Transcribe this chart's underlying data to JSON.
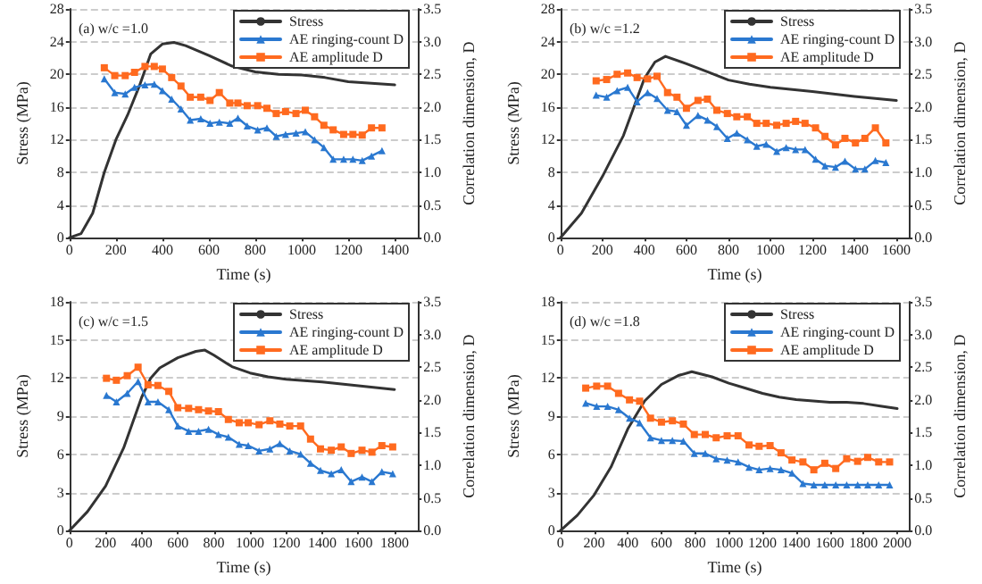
{
  "chart_data": [
    {
      "type": "line",
      "annotations": [
        "(a) w/c =1.0"
      ],
      "xlabel": "Time (s)",
      "ylabel": "Stress (MPa)",
      "y2label": "Correlation dimension, D",
      "xlim": [
        0,
        1500
      ],
      "xticks": [
        0,
        200,
        400,
        600,
        800,
        1000,
        1200,
        1400
      ],
      "ylim": [
        0,
        28
      ],
      "yticks": [
        0,
        4,
        8,
        12,
        16,
        20,
        24,
        28
      ],
      "y2lim": [
        0,
        3.5
      ],
      "y2ticks": [
        {
          "value": 0,
          "label": "0.0"
        },
        0.5,
        {
          "value": 1,
          "label": "1.0"
        },
        1.5,
        {
          "value": 2,
          "label": "2.0"
        },
        2.5,
        {
          "value": 3,
          "label": "3.0"
        },
        3.5
      ],
      "grid": "y",
      "legend": "top right",
      "series": [
        {
          "name": "Stress",
          "color": "#333333",
          "marker": "none",
          "x": [
            0,
            50,
            100,
            150,
            200,
            250,
            300,
            350,
            400,
            450,
            500,
            600,
            700,
            800,
            900,
            1000,
            1100,
            1200,
            1300,
            1400
          ],
          "values": [
            0,
            0.5,
            3,
            8,
            12,
            15,
            18.5,
            22.5,
            23.7,
            23.9,
            23.5,
            22.3,
            21,
            20.3,
            20,
            19.9,
            19.6,
            19.1,
            18.9,
            18.7
          ]
        },
        {
          "name": "AE ringing-count D",
          "color": "#2a78d0",
          "marker": "triangle",
          "axis": "y2",
          "x": [
            150,
            195,
            240,
            280,
            325,
            365,
            400,
            440,
            480,
            520,
            565,
            605,
            645,
            690,
            725,
            765,
            810,
            850,
            890,
            930,
            975,
            1015,
            1055,
            1095,
            1135,
            1180,
            1220,
            1260,
            1300,
            1345
          ],
          "values": [
            2.43,
            2.22,
            2.2,
            2.3,
            2.34,
            2.35,
            2.25,
            2.12,
            1.97,
            1.8,
            1.82,
            1.75,
            1.77,
            1.75,
            1.83,
            1.71,
            1.65,
            1.68,
            1.55,
            1.58,
            1.6,
            1.62,
            1.5,
            1.38,
            1.2,
            1.2,
            1.2,
            1.18,
            1.25,
            1.33
          ]
        },
        {
          "name": "AE amplitude D",
          "color": "#ff6a1f",
          "marker": "square",
          "axis": "y2",
          "x": [
            150,
            195,
            240,
            280,
            325,
            365,
            400,
            440,
            480,
            520,
            565,
            605,
            645,
            690,
            725,
            765,
            810,
            850,
            890,
            930,
            975,
            1015,
            1055,
            1095,
            1135,
            1180,
            1220,
            1260,
            1300,
            1345
          ],
          "values": [
            2.6,
            2.48,
            2.48,
            2.53,
            2.62,
            2.62,
            2.58,
            2.45,
            2.32,
            2.15,
            2.15,
            2.1,
            2.22,
            2.06,
            2.06,
            2.02,
            2.02,
            1.98,
            1.9,
            1.93,
            1.9,
            1.95,
            1.85,
            1.72,
            1.65,
            1.58,
            1.58,
            1.57,
            1.68,
            1.68
          ]
        }
      ]
    },
    {
      "type": "line",
      "annotations": [
        "(b) w/c =1.2"
      ],
      "xlabel": "Time (s)",
      "ylabel": "Stress (MPa)",
      "y2label": "Correlation dimension, D",
      "xlim": [
        0,
        1660
      ],
      "xticks": [
        0,
        200,
        400,
        600,
        800,
        1000,
        1200,
        1400,
        1600
      ],
      "ylim": [
        0,
        28
      ],
      "yticks": [
        0,
        4,
        8,
        12,
        16,
        20,
        24,
        28
      ],
      "y2lim": [
        0,
        3.5
      ],
      "y2ticks": [
        {
          "value": 0,
          "label": "0.0"
        },
        0.5,
        {
          "value": 1,
          "label": "1.0"
        },
        1.5,
        {
          "value": 2,
          "label": "2.0"
        },
        2.5,
        {
          "value": 3,
          "label": "3.0"
        },
        3.5
      ],
      "grid": "y",
      "legend": "top right",
      "series": [
        {
          "name": "Stress",
          "color": "#333333",
          "marker": "none",
          "x": [
            0,
            100,
            200,
            300,
            350,
            400,
            450,
            500,
            600,
            700,
            800,
            900,
            1000,
            1200,
            1400,
            1600
          ],
          "values": [
            0,
            3,
            7.5,
            12.5,
            16,
            19.5,
            21.5,
            22.2,
            21.3,
            20.3,
            19.3,
            18.8,
            18.4,
            17.9,
            17.3,
            16.8
          ]
        },
        {
          "name": "AE ringing-count D",
          "color": "#2a78d0",
          "marker": "triangle",
          "axis": "y2",
          "x": [
            170,
            220,
            270,
            320,
            365,
            415,
            460,
            510,
            555,
            600,
            655,
            700,
            745,
            795,
            840,
            890,
            935,
            980,
            1030,
            1075,
            1120,
            1165,
            1215,
            1260,
            1310,
            1355,
            1405,
            1450,
            1500,
            1550
          ],
          "values": [
            2.18,
            2.15,
            2.25,
            2.3,
            2.08,
            2.22,
            2.13,
            1.95,
            1.93,
            1.72,
            1.87,
            1.8,
            1.7,
            1.52,
            1.6,
            1.5,
            1.4,
            1.43,
            1.32,
            1.38,
            1.35,
            1.35,
            1.2,
            1.1,
            1.08,
            1.17,
            1.05,
            1.05,
            1.18,
            1.15
          ]
        },
        {
          "name": "AE amplitude D",
          "color": "#ff6a1f",
          "marker": "square",
          "axis": "y2",
          "x": [
            170,
            220,
            270,
            320,
            365,
            415,
            460,
            510,
            555,
            600,
            655,
            700,
            745,
            795,
            840,
            890,
            935,
            980,
            1030,
            1075,
            1120,
            1165,
            1215,
            1260,
            1310,
            1355,
            1405,
            1450,
            1500,
            1550
          ],
          "values": [
            2.4,
            2.42,
            2.5,
            2.52,
            2.45,
            2.43,
            2.47,
            2.22,
            2.15,
            1.98,
            2.1,
            2.12,
            1.95,
            1.9,
            1.85,
            1.85,
            1.75,
            1.75,
            1.72,
            1.75,
            1.78,
            1.75,
            1.68,
            1.55,
            1.42,
            1.52,
            1.45,
            1.52,
            1.68,
            1.45
          ]
        }
      ]
    },
    {
      "type": "line",
      "annotations": [
        "(c) w/c =1.5"
      ],
      "xlabel": "Time (s)",
      "ylabel": "Stress (MPa)",
      "y2label": "Correlation dimension, D",
      "xlim": [
        0,
        1930
      ],
      "xticks": [
        0,
        200,
        400,
        600,
        800,
        1000,
        1200,
        1400,
        1600,
        1800
      ],
      "ylim": [
        0,
        18
      ],
      "yticks": [
        0,
        3,
        6,
        9,
        12,
        15,
        18
      ],
      "y2lim": [
        0,
        3.5
      ],
      "y2ticks": [
        {
          "value": 0,
          "label": "0.0"
        },
        0.5,
        {
          "value": 1,
          "label": "1.0"
        },
        1.5,
        {
          "value": 2,
          "label": "2.0"
        },
        2.5,
        {
          "value": 3,
          "label": "3.0"
        },
        3.5
      ],
      "grid": "y",
      "legend": "top right",
      "series": [
        {
          "name": "Stress",
          "color": "#333333",
          "marker": "none",
          "x": [
            0,
            100,
            200,
            300,
            400,
            450,
            500,
            600,
            700,
            750,
            800,
            900,
            1000,
            1100,
            1200,
            1400,
            1600,
            1800
          ],
          "values": [
            0,
            1.5,
            3.5,
            6.5,
            10.5,
            12,
            12.8,
            13.6,
            14.1,
            14.2,
            13.8,
            12.9,
            12.4,
            12.1,
            11.9,
            11.7,
            11.4,
            11.1
          ]
        },
        {
          "name": "AE ringing-count D",
          "color": "#2a78d0",
          "marker": "triangle",
          "axis": "y2",
          "x": [
            205,
            260,
            320,
            380,
            435,
            490,
            550,
            600,
            660,
            715,
            770,
            825,
            880,
            940,
            990,
            1050,
            1110,
            1165,
            1220,
            1280,
            1335,
            1390,
            1450,
            1505,
            1560,
            1620,
            1675,
            1730,
            1790
          ],
          "values": [
            2.07,
            1.97,
            2.1,
            2.28,
            1.97,
            1.97,
            1.85,
            1.6,
            1.52,
            1.52,
            1.55,
            1.47,
            1.43,
            1.32,
            1.3,
            1.22,
            1.25,
            1.33,
            1.22,
            1.17,
            1.03,
            0.92,
            0.87,
            0.93,
            0.75,
            0.82,
            0.75,
            0.9,
            0.87
          ]
        },
        {
          "name": "AE amplitude D",
          "color": "#ff6a1f",
          "marker": "square",
          "axis": "y2",
          "x": [
            205,
            260,
            320,
            380,
            435,
            490,
            550,
            600,
            660,
            715,
            770,
            825,
            880,
            940,
            990,
            1050,
            1110,
            1165,
            1220,
            1280,
            1335,
            1390,
            1450,
            1505,
            1560,
            1620,
            1675,
            1730,
            1790
          ],
          "values": [
            2.33,
            2.3,
            2.37,
            2.5,
            2.23,
            2.22,
            2.13,
            1.88,
            1.87,
            1.85,
            1.83,
            1.82,
            1.7,
            1.65,
            1.65,
            1.62,
            1.68,
            1.63,
            1.6,
            1.6,
            1.4,
            1.25,
            1.23,
            1.28,
            1.18,
            1.23,
            1.2,
            1.3,
            1.28
          ]
        }
      ]
    },
    {
      "type": "line",
      "annotations": [
        "(d) w/c =1.8"
      ],
      "xlabel": "Time (s)",
      "ylabel": "Stress (MPa)",
      "y2label": "Correlation dimension, D",
      "xlim": [
        0,
        2070
      ],
      "xticks": [
        0,
        200,
        400,
        600,
        800,
        1000,
        1200,
        1400,
        1600,
        1800,
        2000
      ],
      "ylim": [
        0,
        18
      ],
      "yticks": [
        0,
        3,
        6,
        9,
        12,
        15,
        18
      ],
      "y2lim": [
        0,
        3.5
      ],
      "y2ticks": [
        {
          "value": 0,
          "label": "0.0"
        },
        0.5,
        {
          "value": 1,
          "label": "1.0"
        },
        1.5,
        {
          "value": 2,
          "label": "2.0"
        },
        2.5,
        {
          "value": 3,
          "label": "3.0"
        },
        3.5
      ],
      "grid": "y",
      "legend": "top right",
      "series": [
        {
          "name": "Stress",
          "color": "#333333",
          "marker": "none",
          "x": [
            0,
            100,
            200,
            300,
            400,
            500,
            600,
            700,
            780,
            900,
            1000,
            1100,
            1200,
            1300,
            1400,
            1500,
            1600,
            1700,
            1800,
            1900,
            2000
          ],
          "values": [
            0,
            1.2,
            2.8,
            5,
            8,
            10.2,
            11.5,
            12.2,
            12.5,
            12.1,
            11.6,
            11.2,
            10.8,
            10.5,
            10.3,
            10.2,
            10.1,
            10.1,
            10,
            9.8,
            9.6
          ]
        },
        {
          "name": "AE ringing-count D",
          "color": "#2a78d0",
          "marker": "triangle",
          "axis": "y2",
          "x": [
            150,
            215,
            280,
            345,
            410,
            470,
            535,
            600,
            665,
            730,
            795,
            860,
            925,
            990,
            1055,
            1120,
            1180,
            1245,
            1310,
            1375,
            1440,
            1505,
            1570,
            1635,
            1700,
            1765,
            1825,
            1890,
            1955
          ],
          "values": [
            1.95,
            1.9,
            1.9,
            1.85,
            1.72,
            1.65,
            1.42,
            1.38,
            1.38,
            1.37,
            1.18,
            1.18,
            1.1,
            1.08,
            1.05,
            0.97,
            0.93,
            0.95,
            0.93,
            0.88,
            0.72,
            0.7,
            0.7,
            0.7,
            0.7,
            0.7,
            0.7,
            0.7,
            0.7
          ]
        },
        {
          "name": "AE amplitude D",
          "color": "#ff6a1f",
          "marker": "square",
          "axis": "y2",
          "x": [
            150,
            215,
            280,
            345,
            410,
            470,
            535,
            600,
            665,
            730,
            795,
            860,
            925,
            990,
            1055,
            1120,
            1180,
            1245,
            1310,
            1375,
            1440,
            1505,
            1570,
            1635,
            1700,
            1765,
            1825,
            1890,
            1955
          ],
          "values": [
            2.18,
            2.21,
            2.21,
            2.1,
            2.0,
            1.98,
            1.72,
            1.66,
            1.68,
            1.63,
            1.47,
            1.47,
            1.42,
            1.45,
            1.45,
            1.31,
            1.29,
            1.3,
            1.19,
            1.08,
            1.05,
            0.93,
            1.03,
            0.95,
            1.1,
            1.06,
            1.12,
            1.05,
            1.05
          ]
        }
      ]
    }
  ]
}
